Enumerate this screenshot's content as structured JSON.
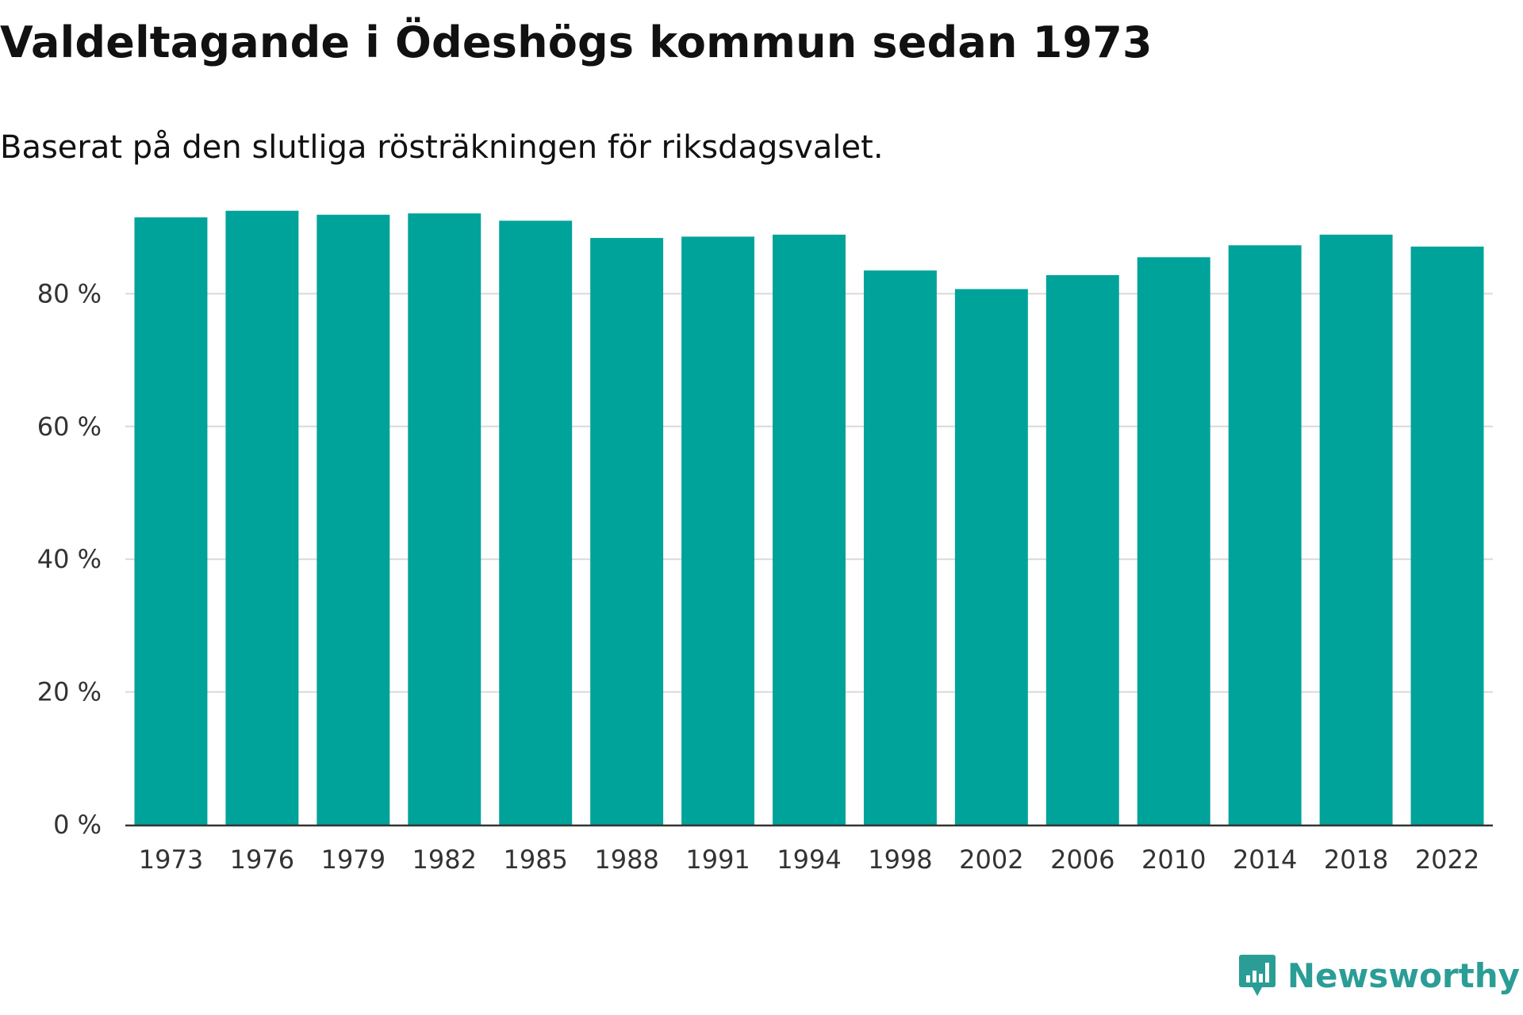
{
  "title": "Valdeltagande i Ödeshögs kommun sedan 1973",
  "subtitle": "Baserat på den slutliga rösträkningen för riksdagsvalet.",
  "brand": {
    "name": "Newsworthy",
    "color": "#2a9d96",
    "icon": "newsworthy-logo-icon"
  },
  "chart_data": {
    "type": "bar",
    "title": "Valdeltagande i Ödeshögs kommun sedan 1973",
    "xlabel": "",
    "ylabel": "",
    "ylim": [
      0,
      100
    ],
    "grid": true,
    "legend": "none",
    "bar_color": "#00a39a",
    "categories": [
      "1973",
      "1976",
      "1979",
      "1982",
      "1985",
      "1988",
      "1991",
      "1994",
      "1998",
      "2002",
      "2006",
      "2010",
      "2014",
      "2018",
      "2022"
    ],
    "values": [
      91.5,
      92.5,
      91.9,
      92.1,
      91.0,
      88.4,
      88.6,
      88.9,
      83.5,
      80.7,
      82.8,
      85.5,
      87.3,
      88.9,
      87.1
    ],
    "yticks": [
      0,
      20,
      40,
      60,
      80
    ],
    "ytick_labels": [
      "0 %",
      "20 %",
      "40 %",
      "60 %",
      "80 %"
    ]
  }
}
